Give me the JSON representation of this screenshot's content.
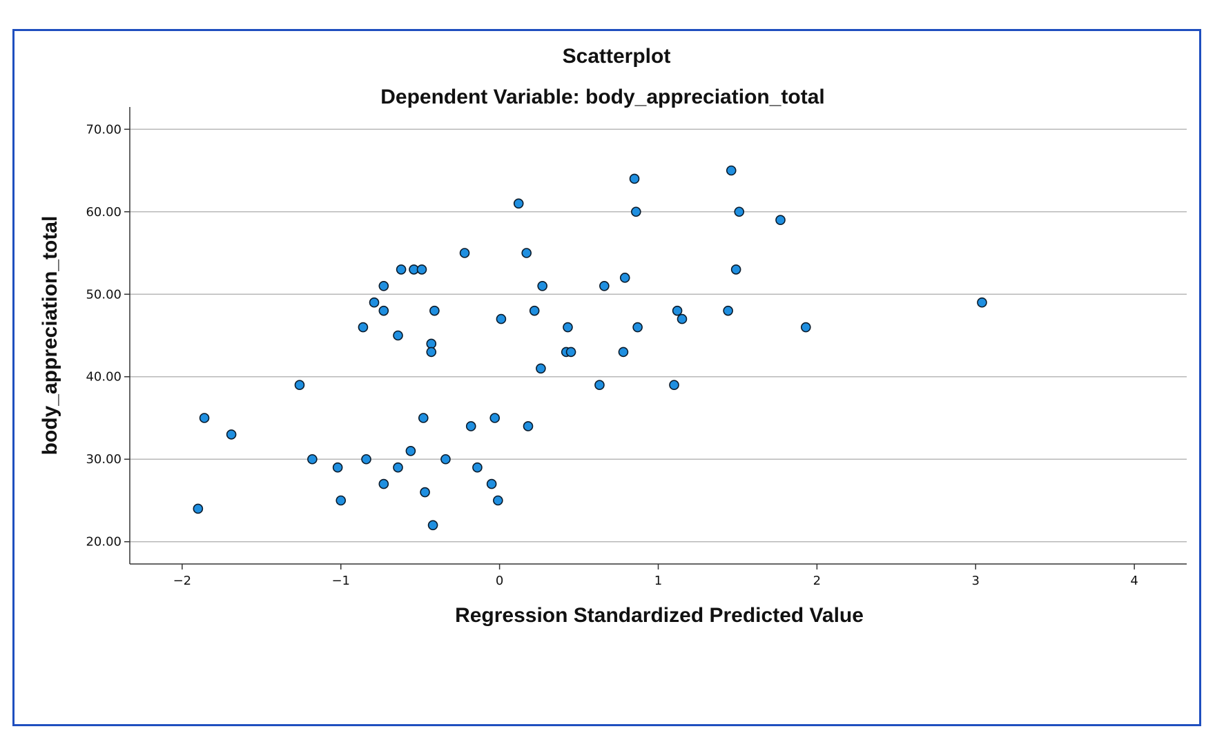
{
  "chart_data": {
    "type": "scatter",
    "title": "Scatterplot",
    "subtitle": "Dependent Variable: body_appreciation_total",
    "xlabel": "Regression Standardized Predicted Value",
    "ylabel": "body_appreciation_total",
    "xlim": [
      -2.33,
      4.33
    ],
    "ylim": [
      17.3,
      72.7
    ],
    "x_ticks": [
      -2,
      -1,
      0,
      1,
      2,
      3,
      4
    ],
    "x_tick_labels": [
      "−2",
      "−1",
      "0",
      "1",
      "2",
      "3",
      "4"
    ],
    "y_ticks": [
      20,
      30,
      40,
      50,
      60,
      70
    ],
    "y_tick_labels": [
      "20.00",
      "30.00",
      "40.00",
      "50.00",
      "60.00",
      "70.00"
    ],
    "grid": "horizontal",
    "marker_color": "#1f8fe0",
    "marker_edge": "#0a1a2a",
    "points": [
      {
        "x": -1.9,
        "y": 24
      },
      {
        "x": -1.86,
        "y": 35
      },
      {
        "x": -1.69,
        "y": 33
      },
      {
        "x": -1.26,
        "y": 39
      },
      {
        "x": -1.18,
        "y": 30
      },
      {
        "x": -1.02,
        "y": 29
      },
      {
        "x": -1.0,
        "y": 25
      },
      {
        "x": -0.86,
        "y": 46
      },
      {
        "x": -0.84,
        "y": 30
      },
      {
        "x": -0.79,
        "y": 49
      },
      {
        "x": -0.73,
        "y": 51
      },
      {
        "x": -0.73,
        "y": 48
      },
      {
        "x": -0.73,
        "y": 27
      },
      {
        "x": -0.64,
        "y": 45
      },
      {
        "x": -0.64,
        "y": 29
      },
      {
        "x": -0.62,
        "y": 53
      },
      {
        "x": -0.56,
        "y": 31
      },
      {
        "x": -0.54,
        "y": 53
      },
      {
        "x": -0.49,
        "y": 53
      },
      {
        "x": -0.48,
        "y": 35
      },
      {
        "x": -0.47,
        "y": 26
      },
      {
        "x": -0.43,
        "y": 44
      },
      {
        "x": -0.43,
        "y": 43
      },
      {
        "x": -0.42,
        "y": 22
      },
      {
        "x": -0.41,
        "y": 48
      },
      {
        "x": -0.34,
        "y": 30
      },
      {
        "x": -0.22,
        "y": 55
      },
      {
        "x": -0.18,
        "y": 34
      },
      {
        "x": -0.14,
        "y": 29
      },
      {
        "x": -0.05,
        "y": 27
      },
      {
        "x": -0.03,
        "y": 35
      },
      {
        "x": -0.01,
        "y": 25
      },
      {
        "x": 0.01,
        "y": 47
      },
      {
        "x": 0.12,
        "y": 61
      },
      {
        "x": 0.17,
        "y": 55
      },
      {
        "x": 0.18,
        "y": 34
      },
      {
        "x": 0.22,
        "y": 48
      },
      {
        "x": 0.26,
        "y": 41
      },
      {
        "x": 0.27,
        "y": 51
      },
      {
        "x": 0.42,
        "y": 43
      },
      {
        "x": 0.43,
        "y": 46
      },
      {
        "x": 0.45,
        "y": 43
      },
      {
        "x": 0.63,
        "y": 39
      },
      {
        "x": 0.66,
        "y": 51
      },
      {
        "x": 0.78,
        "y": 43
      },
      {
        "x": 0.79,
        "y": 52
      },
      {
        "x": 0.85,
        "y": 64
      },
      {
        "x": 0.86,
        "y": 60
      },
      {
        "x": 0.87,
        "y": 46
      },
      {
        "x": 1.1,
        "y": 39
      },
      {
        "x": 1.12,
        "y": 48
      },
      {
        "x": 1.15,
        "y": 47
      },
      {
        "x": 1.44,
        "y": 48
      },
      {
        "x": 1.46,
        "y": 65
      },
      {
        "x": 1.49,
        "y": 53
      },
      {
        "x": 1.51,
        "y": 60
      },
      {
        "x": 1.77,
        "y": 59
      },
      {
        "x": 1.93,
        "y": 46
      },
      {
        "x": 3.04,
        "y": 49
      }
    ]
  }
}
